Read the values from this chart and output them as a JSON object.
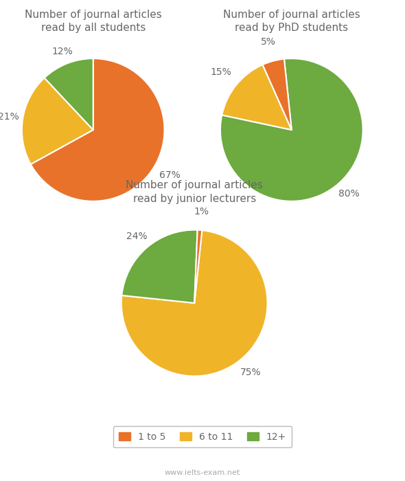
{
  "charts": [
    {
      "title": "Number of journal articles\nread by all students",
      "values": [
        67,
        21,
        12
      ],
      "colors": [
        "#E8722A",
        "#F0B429",
        "#6DAA3F"
      ],
      "labels": [
        "67%",
        "21%",
        "12%"
      ],
      "startangle": 90,
      "label_distances": [
        1.25,
        1.2,
        1.18
      ]
    },
    {
      "title": "Number of journal articles\nread by PhD students",
      "values": [
        80,
        15,
        5
      ],
      "colors": [
        "#6DAA3F",
        "#F0B429",
        "#E8722A"
      ],
      "labels": [
        "80%",
        "15%",
        "5%"
      ],
      "startangle": 96,
      "label_distances": [
        1.2,
        1.28,
        1.28
      ]
    },
    {
      "title": "Number of journal articles\nread by junior lecturers",
      "values": [
        75,
        24,
        1
      ],
      "colors": [
        "#F0B429",
        "#6DAA3F",
        "#E8722A"
      ],
      "labels": [
        "75%",
        "24%",
        "1%"
      ],
      "startangle": 84,
      "label_distances": [
        1.22,
        1.2,
        1.25
      ]
    }
  ],
  "legend_labels": [
    "1 to 5",
    "6 to 11",
    "12+"
  ],
  "legend_colors": [
    "#E8722A",
    "#F0B429",
    "#6DAA3F"
  ],
  "watermark": "www.ielts-exam.net",
  "bg_color": "#FFFFFF",
  "text_color": "#666666",
  "wedge_linewidth": 1.5,
  "wedge_linecolor": "#FFFFFF",
  "title_fontsize": 11,
  "pct_fontsize": 10
}
